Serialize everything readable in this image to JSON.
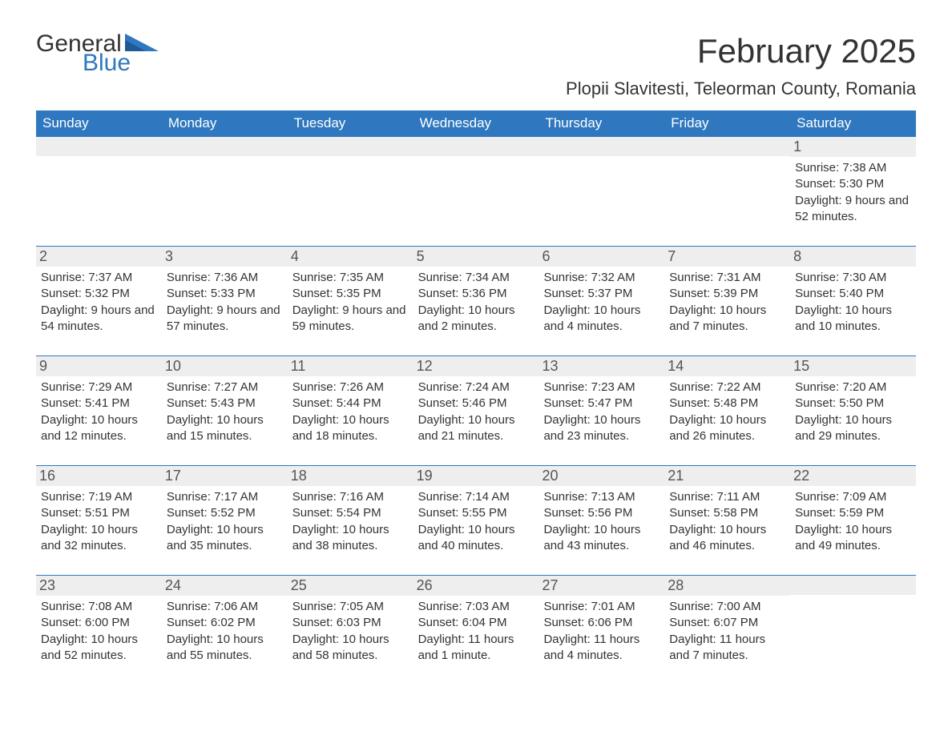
{
  "brand": {
    "general": "General",
    "blue": "Blue"
  },
  "title": "February 2025",
  "location": "Plopii Slavitesti, Teleorman County, Romania",
  "colors": {
    "header_bg": "#2f78bf",
    "header_text": "#ffffff",
    "daynum_bg": "#eeeeee",
    "border": "#2f78bf",
    "body_text": "#333333",
    "logo_blue": "#2f78bf",
    "page_bg": "#ffffff"
  },
  "weekdays": [
    "Sunday",
    "Monday",
    "Tuesday",
    "Wednesday",
    "Thursday",
    "Friday",
    "Saturday"
  ],
  "weeks": [
    [
      null,
      null,
      null,
      null,
      null,
      null,
      {
        "n": "1",
        "sunrise": "7:38 AM",
        "sunset": "5:30 PM",
        "daylight": "9 hours and 52 minutes."
      }
    ],
    [
      {
        "n": "2",
        "sunrise": "7:37 AM",
        "sunset": "5:32 PM",
        "daylight": "9 hours and 54 minutes."
      },
      {
        "n": "3",
        "sunrise": "7:36 AM",
        "sunset": "5:33 PM",
        "daylight": "9 hours and 57 minutes."
      },
      {
        "n": "4",
        "sunrise": "7:35 AM",
        "sunset": "5:35 PM",
        "daylight": "9 hours and 59 minutes."
      },
      {
        "n": "5",
        "sunrise": "7:34 AM",
        "sunset": "5:36 PM",
        "daylight": "10 hours and 2 minutes."
      },
      {
        "n": "6",
        "sunrise": "7:32 AM",
        "sunset": "5:37 PM",
        "daylight": "10 hours and 4 minutes."
      },
      {
        "n": "7",
        "sunrise": "7:31 AM",
        "sunset": "5:39 PM",
        "daylight": "10 hours and 7 minutes."
      },
      {
        "n": "8",
        "sunrise": "7:30 AM",
        "sunset": "5:40 PM",
        "daylight": "10 hours and 10 minutes."
      }
    ],
    [
      {
        "n": "9",
        "sunrise": "7:29 AM",
        "sunset": "5:41 PM",
        "daylight": "10 hours and 12 minutes."
      },
      {
        "n": "10",
        "sunrise": "7:27 AM",
        "sunset": "5:43 PM",
        "daylight": "10 hours and 15 minutes."
      },
      {
        "n": "11",
        "sunrise": "7:26 AM",
        "sunset": "5:44 PM",
        "daylight": "10 hours and 18 minutes."
      },
      {
        "n": "12",
        "sunrise": "7:24 AM",
        "sunset": "5:46 PM",
        "daylight": "10 hours and 21 minutes."
      },
      {
        "n": "13",
        "sunrise": "7:23 AM",
        "sunset": "5:47 PM",
        "daylight": "10 hours and 23 minutes."
      },
      {
        "n": "14",
        "sunrise": "7:22 AM",
        "sunset": "5:48 PM",
        "daylight": "10 hours and 26 minutes."
      },
      {
        "n": "15",
        "sunrise": "7:20 AM",
        "sunset": "5:50 PM",
        "daylight": "10 hours and 29 minutes."
      }
    ],
    [
      {
        "n": "16",
        "sunrise": "7:19 AM",
        "sunset": "5:51 PM",
        "daylight": "10 hours and 32 minutes."
      },
      {
        "n": "17",
        "sunrise": "7:17 AM",
        "sunset": "5:52 PM",
        "daylight": "10 hours and 35 minutes."
      },
      {
        "n": "18",
        "sunrise": "7:16 AM",
        "sunset": "5:54 PM",
        "daylight": "10 hours and 38 minutes."
      },
      {
        "n": "19",
        "sunrise": "7:14 AM",
        "sunset": "5:55 PM",
        "daylight": "10 hours and 40 minutes."
      },
      {
        "n": "20",
        "sunrise": "7:13 AM",
        "sunset": "5:56 PM",
        "daylight": "10 hours and 43 minutes."
      },
      {
        "n": "21",
        "sunrise": "7:11 AM",
        "sunset": "5:58 PM",
        "daylight": "10 hours and 46 minutes."
      },
      {
        "n": "22",
        "sunrise": "7:09 AM",
        "sunset": "5:59 PM",
        "daylight": "10 hours and 49 minutes."
      }
    ],
    [
      {
        "n": "23",
        "sunrise": "7:08 AM",
        "sunset": "6:00 PM",
        "daylight": "10 hours and 52 minutes."
      },
      {
        "n": "24",
        "sunrise": "7:06 AM",
        "sunset": "6:02 PM",
        "daylight": "10 hours and 55 minutes."
      },
      {
        "n": "25",
        "sunrise": "7:05 AM",
        "sunset": "6:03 PM",
        "daylight": "10 hours and 58 minutes."
      },
      {
        "n": "26",
        "sunrise": "7:03 AM",
        "sunset": "6:04 PM",
        "daylight": "11 hours and 1 minute."
      },
      {
        "n": "27",
        "sunrise": "7:01 AM",
        "sunset": "6:06 PM",
        "daylight": "11 hours and 4 minutes."
      },
      {
        "n": "28",
        "sunrise": "7:00 AM",
        "sunset": "6:07 PM",
        "daylight": "11 hours and 7 minutes."
      },
      null
    ]
  ],
  "labels": {
    "sunrise": "Sunrise: ",
    "sunset": "Sunset: ",
    "daylight": "Daylight: "
  }
}
